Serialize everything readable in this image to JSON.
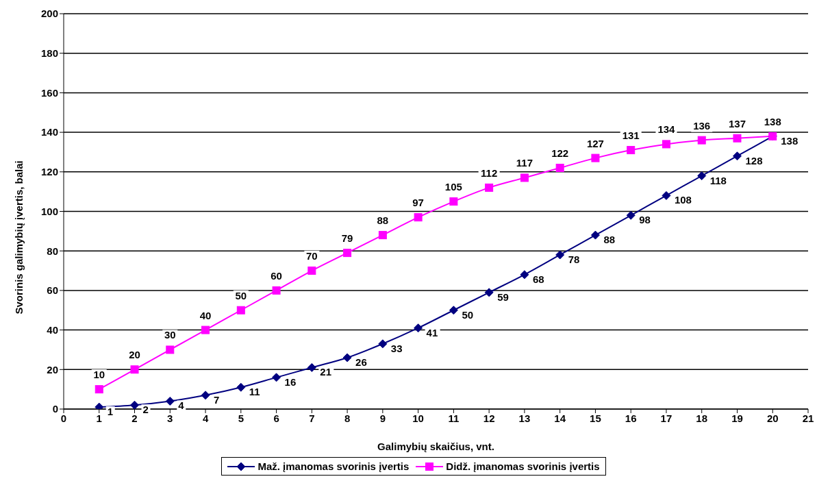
{
  "chart_data": {
    "type": "line",
    "xlabel": "Galimybių skaičius, vnt.",
    "ylabel": "Svorinis galimybių įvertis, balai",
    "x": [
      1,
      2,
      3,
      4,
      5,
      6,
      7,
      8,
      9,
      10,
      11,
      12,
      13,
      14,
      15,
      16,
      17,
      18,
      19,
      20
    ],
    "series": [
      {
        "name": "Maž. įmanomas svorinis įvertis",
        "color": "#000080",
        "marker": "diamond",
        "values": [
          1,
          2,
          4,
          7,
          11,
          16,
          21,
          26,
          33,
          41,
          50,
          59,
          68,
          78,
          88,
          98,
          108,
          118,
          128,
          138
        ]
      },
      {
        "name": "Didž. įmanomas svorinis įvertis",
        "color": "#ff00ff",
        "marker": "square",
        "values": [
          10,
          20,
          30,
          40,
          50,
          60,
          70,
          79,
          88,
          97,
          105,
          112,
          117,
          122,
          127,
          131,
          134,
          136,
          137,
          138
        ]
      }
    ],
    "xlim": [
      0,
      21
    ],
    "xticks": [
      0,
      1,
      2,
      3,
      4,
      5,
      6,
      7,
      8,
      9,
      10,
      11,
      12,
      13,
      14,
      15,
      16,
      17,
      18,
      19,
      20,
      21
    ],
    "ylim": [
      0,
      200
    ],
    "yticks": [
      0,
      20,
      40,
      60,
      80,
      100,
      120,
      140,
      160,
      180,
      200
    ],
    "grid": "y",
    "legend": "bottom",
    "data_labels": true,
    "line_style": "solid"
  }
}
